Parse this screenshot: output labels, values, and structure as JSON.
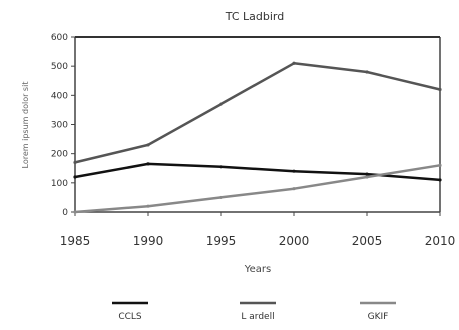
{
  "chart_data": {
    "type": "line",
    "title": "TC Ladbird",
    "xlabel": "Years",
    "ylabel": "Lorem ipsum dolor sit",
    "x": [
      "1985",
      "1990",
      "1995",
      "2000",
      "2005",
      "2010"
    ],
    "y_ticks": [
      "0",
      "100",
      "200",
      "300",
      "400",
      "500",
      "600"
    ],
    "ylim": [
      0,
      600
    ],
    "grid": false,
    "legend_position": "bottom",
    "series": [
      {
        "name": "CCLS",
        "color": "#111111",
        "values": [
          120,
          165,
          155,
          140,
          130,
          110
        ]
      },
      {
        "name": "L ardell",
        "color": "#555555",
        "values": [
          170,
          230,
          370,
          510,
          480,
          420
        ]
      },
      {
        "name": "GKIF",
        "color": "#888888",
        "values": [
          0,
          20,
          50,
          80,
          120,
          160
        ]
      }
    ]
  }
}
